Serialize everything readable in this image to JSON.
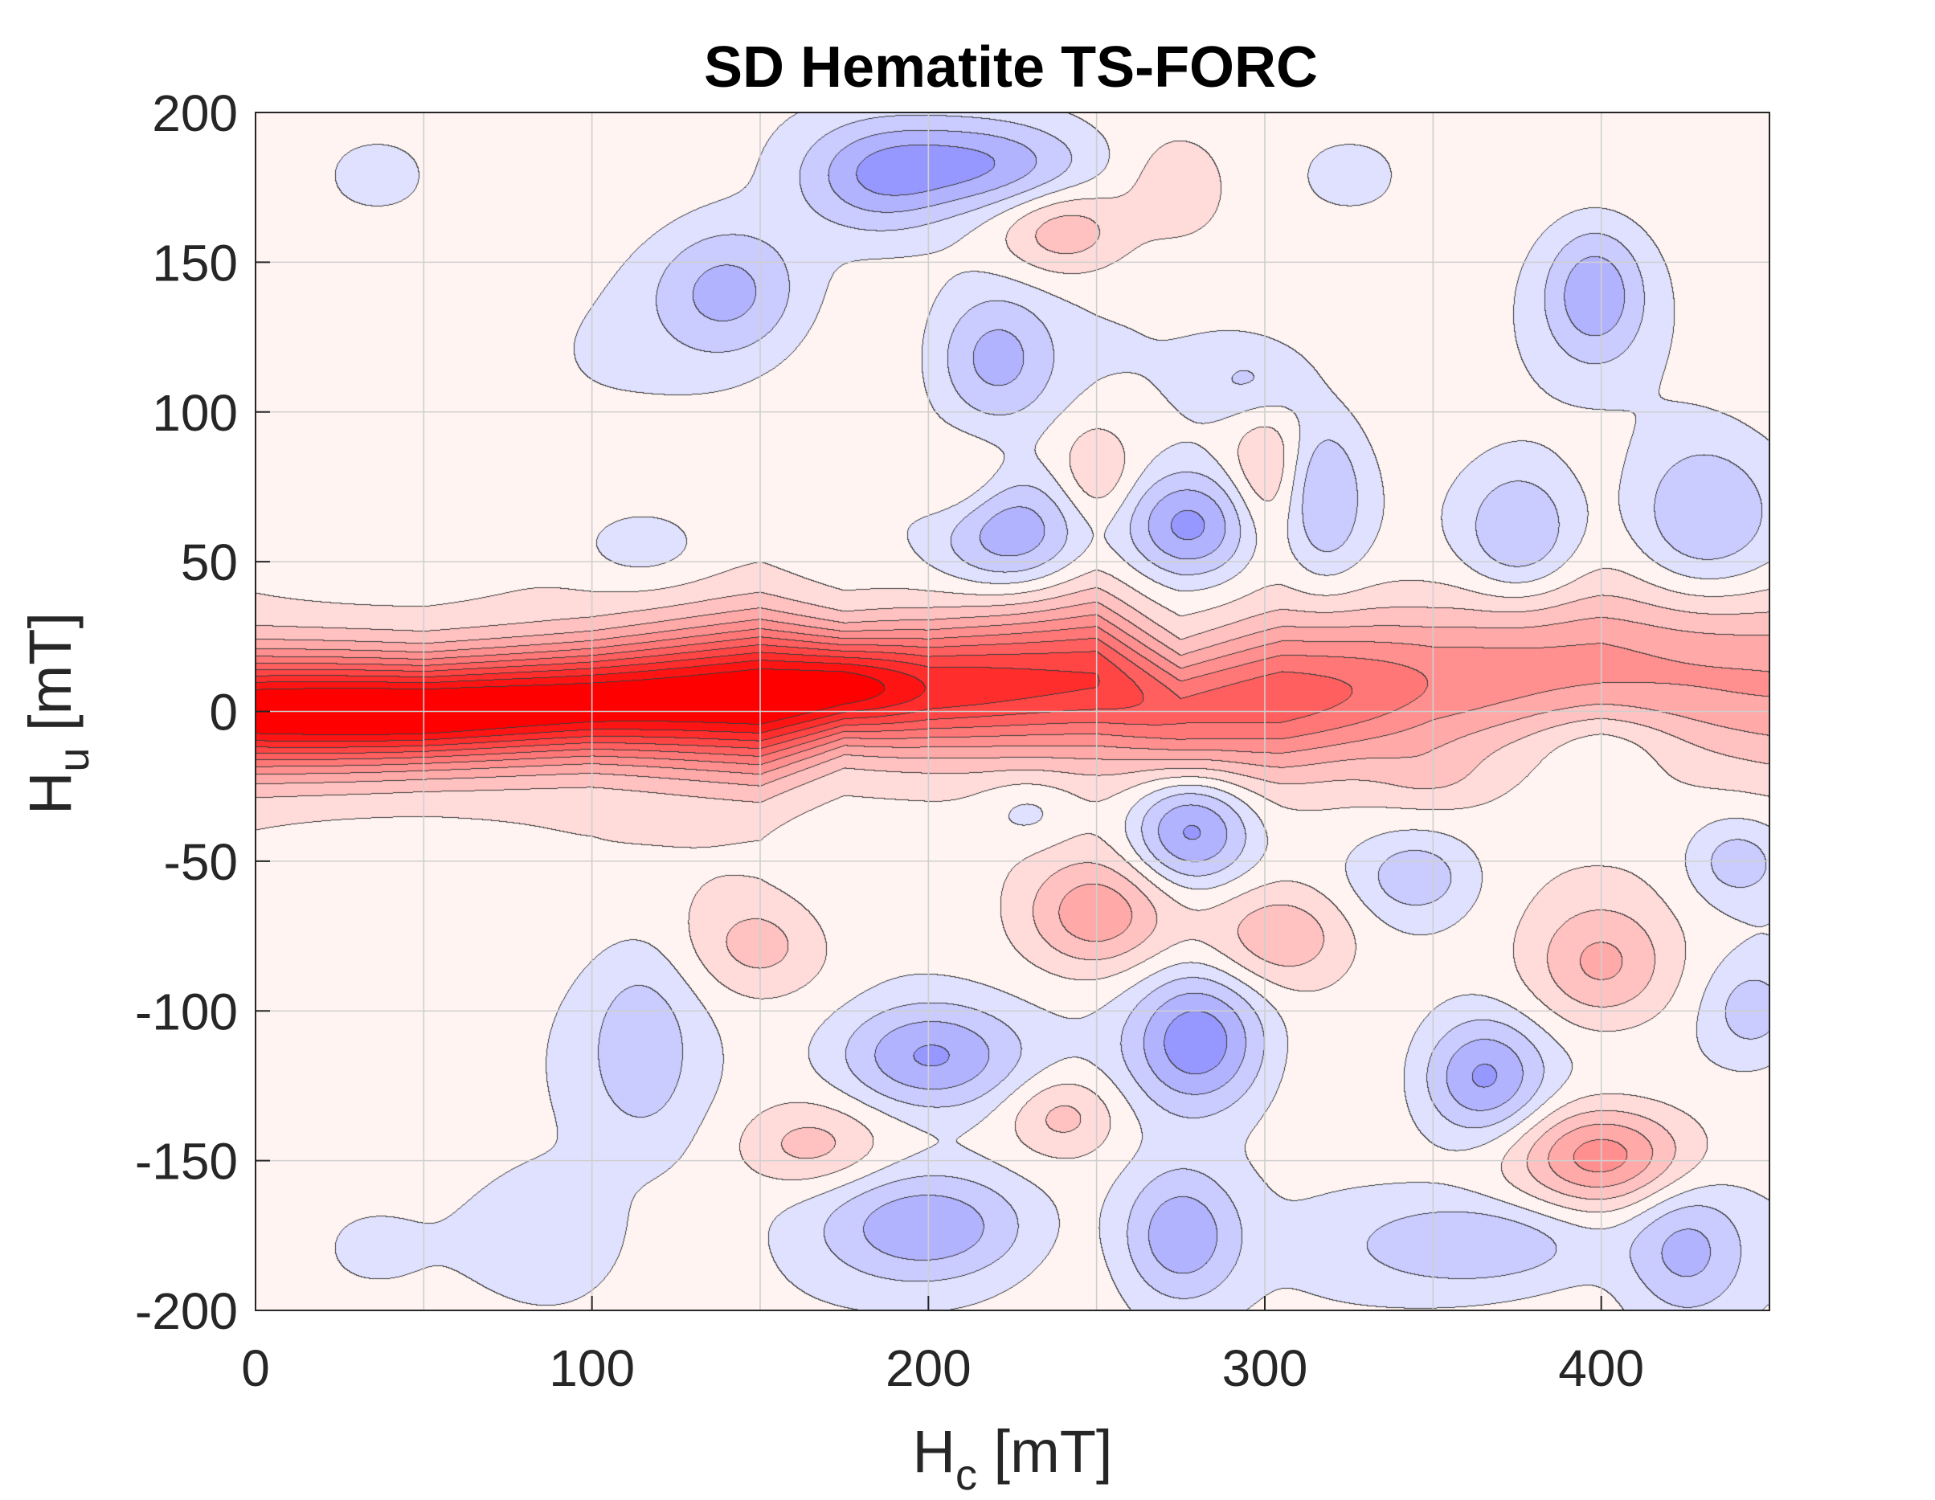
{
  "chart_data": {
    "type": "heatmap",
    "title": "SD Hematite TS-FORC",
    "xlabel": {
      "main": "H",
      "sub": "c",
      "unit": " [mT]"
    },
    "ylabel": {
      "main": "H",
      "sub": "u",
      "unit": " [mT]"
    },
    "xlim": [
      0,
      450
    ],
    "ylim": [
      -200,
      200
    ],
    "x_ticks": [
      0,
      100,
      200,
      300,
      400
    ],
    "x_tick_labels": [
      "0",
      "100",
      "200",
      "300",
      "400"
    ],
    "y_ticks": [
      -200,
      -150,
      -100,
      -50,
      0,
      50,
      100,
      150,
      200
    ],
    "y_tick_labels": [
      "-200",
      "-150",
      "-100",
      "-50",
      "0",
      "50",
      "100",
      "150",
      "200"
    ],
    "grid": true,
    "grid_x": [
      0,
      50,
      100,
      150,
      200,
      250,
      300,
      350,
      400,
      450
    ],
    "grid_y": [
      -200,
      -150,
      -100,
      -50,
      0,
      50,
      100,
      150,
      200
    ],
    "colormap": {
      "positive": "#ff0000",
      "zero": "#ffffff",
      "negative": "#5050ff"
    },
    "contour_levels": [
      -0.55,
      -0.4,
      -0.27,
      -0.15,
      -0.05,
      0.05,
      0.15,
      0.25,
      0.35,
      0.45,
      0.55,
      0.65,
      0.75,
      0.85,
      0.95
    ],
    "ridge": {
      "description_level": "normalized",
      "points": [
        {
          "hc": 0,
          "hu": 0,
          "amp": 1.0,
          "width": 13
        },
        {
          "hc": 50,
          "hu": 0,
          "amp": 1.0,
          "width": 12
        },
        {
          "hc": 100,
          "hu": 3,
          "amp": 1.0,
          "width": 13
        },
        {
          "hc": 150,
          "hu": 5,
          "amp": 1.0,
          "width": 16
        },
        {
          "hc": 175,
          "hu": 8,
          "amp": 0.92,
          "width": 12
        },
        {
          "hc": 200,
          "hu": 8,
          "amp": 0.75,
          "width": 14
        },
        {
          "hc": 250,
          "hu": 10,
          "amp": 0.72,
          "width": 17
        },
        {
          "hc": 275,
          "hu": 0,
          "amp": 0.55,
          "width": 14
        },
        {
          "hc": 305,
          "hu": 5,
          "amp": 0.55,
          "width": 17
        },
        {
          "hc": 350,
          "hu": 10,
          "amp": 0.4,
          "width": 17
        },
        {
          "hc": 400,
          "hu": 15,
          "amp": 0.38,
          "width": 17
        },
        {
          "hc": 450,
          "hu": 10,
          "amp": 0.32,
          "width": 20
        }
      ]
    },
    "features": [
      {
        "hc": 140,
        "hu": 140,
        "amp": -0.3,
        "sx": 15,
        "sy": 15
      },
      {
        "hc": 215,
        "hu": 183,
        "amp": -0.38,
        "sx": 22,
        "sy": 10
      },
      {
        "hc": 185,
        "hu": 178,
        "amp": -0.28,
        "sx": 15,
        "sy": 12
      },
      {
        "hc": 240,
        "hu": 160,
        "amp": 0.22,
        "sx": 13,
        "sy": 10
      },
      {
        "hc": 220,
        "hu": 118,
        "amp": -0.3,
        "sx": 12,
        "sy": 15
      },
      {
        "hc": 225,
        "hu": 60,
        "amp": -0.4,
        "sx": 15,
        "sy": 13
      },
      {
        "hc": 277,
        "hu": 62,
        "amp": -0.45,
        "sx": 13,
        "sy": 12
      },
      {
        "hc": 318,
        "hu": 72,
        "amp": -0.25,
        "sx": 8,
        "sy": 18
      },
      {
        "hc": 376,
        "hu": 60,
        "amp": -0.3,
        "sx": 12,
        "sy": 15
      },
      {
        "hc": 430,
        "hu": 65,
        "amp": -0.28,
        "sx": 15,
        "sy": 18
      },
      {
        "hc": 398,
        "hu": 140,
        "amp": -0.35,
        "sx": 10,
        "sy": 15
      },
      {
        "hc": 297,
        "hu": 110,
        "amp": -0.18,
        "sx": 12,
        "sy": 10
      },
      {
        "hc": 115,
        "hu": 55,
        "amp": -0.15,
        "sx": 15,
        "sy": 10
      },
      {
        "hc": 210,
        "hu": 75,
        "amp": 0.15,
        "sx": 10,
        "sy": 10
      },
      {
        "hc": 250,
        "hu": 80,
        "amp": 0.15,
        "sx": 8,
        "sy": 12
      },
      {
        "hc": 300,
        "hu": 80,
        "amp": 0.18,
        "sx": 8,
        "sy": 18
      },
      {
        "hc": 275,
        "hu": 175,
        "amp": 0.14,
        "sx": 10,
        "sy": 12
      },
      {
        "hc": 205,
        "hu": -28,
        "amp": 0.0,
        "sx": 10,
        "sy": 8
      },
      {
        "hc": 230,
        "hu": -33,
        "amp": -0.12,
        "sx": 10,
        "sy": 8
      },
      {
        "hc": 278,
        "hu": -40,
        "amp": -0.45,
        "sx": 12,
        "sy": 12
      },
      {
        "hc": 250,
        "hu": -68,
        "amp": 0.3,
        "sx": 15,
        "sy": 13
      },
      {
        "hc": 305,
        "hu": -75,
        "amp": 0.26,
        "sx": 15,
        "sy": 12
      },
      {
        "hc": 150,
        "hu": -78,
        "amp": 0.2,
        "sx": 15,
        "sy": 12
      },
      {
        "hc": 200,
        "hu": -115,
        "amp": -0.42,
        "sx": 18,
        "sy": 12
      },
      {
        "hc": 280,
        "hu": -110,
        "amp": -0.48,
        "sx": 13,
        "sy": 15
      },
      {
        "hc": 365,
        "hu": -122,
        "amp": -0.4,
        "sx": 12,
        "sy": 13
      },
      {
        "hc": 400,
        "hu": -85,
        "amp": 0.28,
        "sx": 15,
        "sy": 15
      },
      {
        "hc": 400,
        "hu": -148,
        "amp": 0.42,
        "sx": 18,
        "sy": 12
      },
      {
        "hc": 240,
        "hu": -135,
        "amp": 0.22,
        "sx": 12,
        "sy": 10
      },
      {
        "hc": 165,
        "hu": -145,
        "amp": 0.2,
        "sx": 15,
        "sy": 10
      },
      {
        "hc": 200,
        "hu": -172,
        "amp": -0.35,
        "sx": 20,
        "sy": 12
      },
      {
        "hc": 275,
        "hu": -175,
        "amp": -0.38,
        "sx": 12,
        "sy": 15
      },
      {
        "hc": 365,
        "hu": -178,
        "amp": -0.25,
        "sx": 25,
        "sy": 10
      },
      {
        "hc": 425,
        "hu": -180,
        "amp": -0.3,
        "sx": 12,
        "sy": 15
      },
      {
        "hc": 115,
        "hu": -110,
        "amp": -0.18,
        "sx": 12,
        "sy": 25
      },
      {
        "hc": 90,
        "hu": -175,
        "amp": -0.14,
        "sx": 15,
        "sy": 15
      },
      {
        "hc": 345,
        "hu": -55,
        "amp": -0.2,
        "sx": 12,
        "sy": 10
      },
      {
        "hc": 440,
        "hu": -50,
        "amp": -0.2,
        "sx": 10,
        "sy": 10
      },
      {
        "hc": 445,
        "hu": -100,
        "amp": -0.2,
        "sx": 10,
        "sy": 12
      },
      {
        "hc": 400,
        "hu": -10,
        "amp": -0.1,
        "sx": 15,
        "sy": 8
      },
      {
        "hc": 350,
        "hu": -22,
        "amp": 0.1,
        "sx": 12,
        "sy": 8
      }
    ]
  }
}
